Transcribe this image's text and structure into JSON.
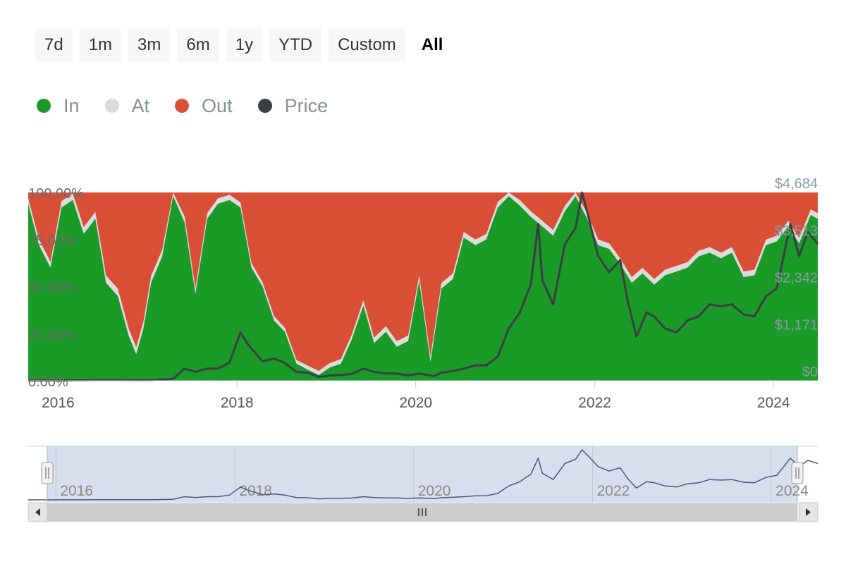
{
  "range_selector": {
    "buttons": [
      "7d",
      "1m",
      "3m",
      "6m",
      "1y",
      "YTD",
      "Custom",
      "All"
    ],
    "active": "All"
  },
  "legend": [
    {
      "label": "In",
      "color": "#1a9a27"
    },
    {
      "label": "At",
      "color": "#dcdcdc"
    },
    {
      "label": "Out",
      "color": "#d94f36"
    },
    {
      "label": "Price",
      "color": "#3a3f44"
    }
  ],
  "chart_data": {
    "type": "area",
    "stacking": "percent",
    "x_start": "2015-09-01",
    "x_end": "2024-06-30",
    "x_ticks": [
      "2016",
      "2018",
      "2020",
      "2022",
      "2024"
    ],
    "y_left_ticks": [
      "0.00%",
      "25.00%",
      "50.00%",
      "75.00%",
      "100.00%"
    ],
    "y_left_range": [
      0,
      100
    ],
    "y_right_ticks": [
      "$0",
      "$1,171",
      "$2,342",
      "$3,513",
      "$4,684"
    ],
    "y_right_range": [
      0,
      4684
    ],
    "series": [
      {
        "name": "In",
        "color": "#1a9a27",
        "points": [
          [
            "2015-09-01",
            94
          ],
          [
            "2015-10-15",
            72
          ],
          [
            "2015-12-01",
            60
          ],
          [
            "2016-01-15",
            92
          ],
          [
            "2016-03-01",
            96
          ],
          [
            "2016-04-15",
            78
          ],
          [
            "2016-06-01",
            86
          ],
          [
            "2016-07-15",
            52
          ],
          [
            "2016-09-01",
            45
          ],
          [
            "2016-10-15",
            24
          ],
          [
            "2016-11-15",
            14
          ],
          [
            "2016-12-15",
            28
          ],
          [
            "2017-01-15",
            52
          ],
          [
            "2017-03-01",
            66
          ],
          [
            "2017-04-15",
            98
          ],
          [
            "2017-06-01",
            84
          ],
          [
            "2017-07-15",
            46
          ],
          [
            "2017-09-01",
            86
          ],
          [
            "2017-10-15",
            94
          ],
          [
            "2017-12-01",
            96
          ],
          [
            "2018-01-15",
            92
          ],
          [
            "2018-03-01",
            60
          ],
          [
            "2018-04-15",
            50
          ],
          [
            "2018-06-01",
            32
          ],
          [
            "2018-07-15",
            26
          ],
          [
            "2018-09-01",
            9
          ],
          [
            "2018-10-15",
            6
          ],
          [
            "2018-12-01",
            3
          ],
          [
            "2019-01-15",
            7
          ],
          [
            "2019-03-01",
            9
          ],
          [
            "2019-04-15",
            22
          ],
          [
            "2019-06-01",
            40
          ],
          [
            "2019-07-15",
            20
          ],
          [
            "2019-09-01",
            26
          ],
          [
            "2019-10-15",
            18
          ],
          [
            "2019-12-01",
            21
          ],
          [
            "2020-01-15",
            53
          ],
          [
            "2020-03-01",
            10
          ],
          [
            "2020-04-15",
            49
          ],
          [
            "2020-06-01",
            54
          ],
          [
            "2020-07-15",
            76
          ],
          [
            "2020-09-01",
            72
          ],
          [
            "2020-10-15",
            75
          ],
          [
            "2020-12-01",
            92
          ],
          [
            "2021-01-15",
            98
          ],
          [
            "2021-03-01",
            93
          ],
          [
            "2021-04-15",
            87
          ],
          [
            "2021-06-01",
            82
          ],
          [
            "2021-07-15",
            77
          ],
          [
            "2021-09-01",
            90
          ],
          [
            "2021-10-15",
            98
          ],
          [
            "2021-12-01",
            86
          ],
          [
            "2022-01-15",
            72
          ],
          [
            "2022-03-01",
            70
          ],
          [
            "2022-04-15",
            62
          ],
          [
            "2022-06-01",
            52
          ],
          [
            "2022-07-15",
            57
          ],
          [
            "2022-09-01",
            51
          ],
          [
            "2022-10-15",
            56
          ],
          [
            "2022-12-01",
            58
          ],
          [
            "2023-01-15",
            60
          ],
          [
            "2023-03-01",
            66
          ],
          [
            "2023-04-15",
            68
          ],
          [
            "2023-06-01",
            65
          ],
          [
            "2023-07-15",
            68
          ],
          [
            "2023-09-01",
            55
          ],
          [
            "2023-10-15",
            56
          ],
          [
            "2023-12-01",
            72
          ],
          [
            "2024-01-15",
            74
          ],
          [
            "2024-03-01",
            82
          ],
          [
            "2024-04-15",
            73
          ],
          [
            "2024-06-01",
            88
          ],
          [
            "2024-06-30",
            86
          ]
        ]
      },
      {
        "name": "At",
        "color": "#dcdcdc",
        "points": [
          [
            "2015-09-01",
            3
          ],
          [
            "2016-09-01",
            4
          ],
          [
            "2017-09-01",
            3
          ],
          [
            "2018-09-01",
            2
          ],
          [
            "2019-09-01",
            3
          ],
          [
            "2020-09-01",
            3
          ],
          [
            "2021-09-01",
            3
          ],
          [
            "2022-09-01",
            3
          ],
          [
            "2023-09-01",
            3
          ],
          [
            "2024-06-30",
            3
          ]
        ]
      },
      {
        "name": "Out",
        "color": "#d94f36",
        "fill_to_top": true
      },
      {
        "name": "Price",
        "color": "#3a3f44",
        "axis": "right",
        "points": [
          [
            "2015-09-01",
            1
          ],
          [
            "2016-06-01",
            12
          ],
          [
            "2017-01-15",
            10
          ],
          [
            "2017-04-15",
            50
          ],
          [
            "2017-06-01",
            300
          ],
          [
            "2017-07-15",
            220
          ],
          [
            "2017-09-01",
            300
          ],
          [
            "2017-10-15",
            300
          ],
          [
            "2017-12-01",
            450
          ],
          [
            "2018-01-15",
            1200
          ],
          [
            "2018-02-15",
            900
          ],
          [
            "2018-04-15",
            480
          ],
          [
            "2018-06-01",
            550
          ],
          [
            "2018-07-15",
            440
          ],
          [
            "2018-09-01",
            220
          ],
          [
            "2018-10-15",
            200
          ],
          [
            "2018-12-01",
            95
          ],
          [
            "2019-01-15",
            130
          ],
          [
            "2019-03-01",
            140
          ],
          [
            "2019-04-15",
            170
          ],
          [
            "2019-06-01",
            300
          ],
          [
            "2019-07-15",
            220
          ],
          [
            "2019-09-01",
            180
          ],
          [
            "2019-10-15",
            180
          ],
          [
            "2019-12-01",
            130
          ],
          [
            "2020-01-15",
            180
          ],
          [
            "2020-03-15",
            110
          ],
          [
            "2020-04-15",
            200
          ],
          [
            "2020-06-01",
            240
          ],
          [
            "2020-07-15",
            300
          ],
          [
            "2020-09-01",
            380
          ],
          [
            "2020-10-15",
            380
          ],
          [
            "2020-12-01",
            600
          ],
          [
            "2021-01-15",
            1300
          ],
          [
            "2021-03-01",
            1700
          ],
          [
            "2021-04-15",
            2400
          ],
          [
            "2021-05-15",
            3900
          ],
          [
            "2021-06-01",
            2500
          ],
          [
            "2021-07-15",
            1900
          ],
          [
            "2021-09-01",
            3400
          ],
          [
            "2021-10-15",
            3800
          ],
          [
            "2021-11-10",
            4684
          ],
          [
            "2021-12-01",
            4200
          ],
          [
            "2022-01-15",
            3100
          ],
          [
            "2022-03-01",
            2700
          ],
          [
            "2022-04-15",
            3000
          ],
          [
            "2022-05-15",
            2000
          ],
          [
            "2022-06-20",
            1100
          ],
          [
            "2022-08-01",
            1700
          ],
          [
            "2022-09-01",
            1600
          ],
          [
            "2022-10-15",
            1300
          ],
          [
            "2022-12-01",
            1200
          ],
          [
            "2023-01-15",
            1500
          ],
          [
            "2023-03-01",
            1600
          ],
          [
            "2023-04-15",
            1900
          ],
          [
            "2023-06-01",
            1850
          ],
          [
            "2023-07-15",
            1900
          ],
          [
            "2023-09-01",
            1650
          ],
          [
            "2023-10-15",
            1600
          ],
          [
            "2023-12-01",
            2100
          ],
          [
            "2024-01-15",
            2300
          ],
          [
            "2024-03-10",
            3900
          ],
          [
            "2024-04-15",
            3100
          ],
          [
            "2024-05-20",
            3700
          ],
          [
            "2024-06-30",
            3400
          ]
        ]
      }
    ],
    "navigator": {
      "x_ticks": [
        "2016",
        "2018",
        "2020",
        "2022",
        "2024"
      ],
      "series": "Price"
    }
  }
}
